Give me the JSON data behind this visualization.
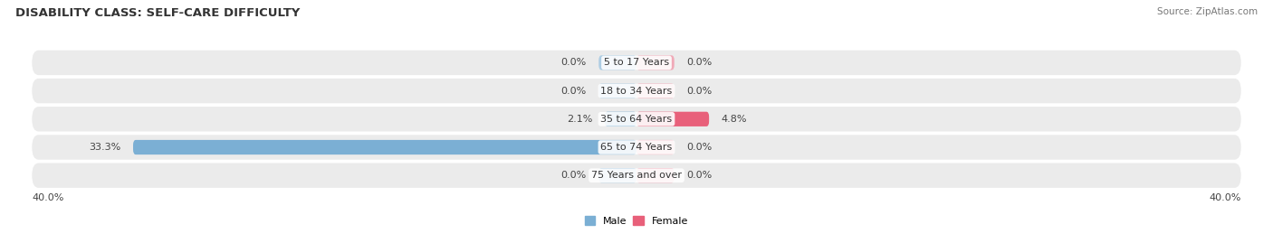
{
  "title": "DISABILITY CLASS: SELF-CARE DIFFICULTY",
  "source": "Source: ZipAtlas.com",
  "categories": [
    "5 to 17 Years",
    "18 to 34 Years",
    "35 to 64 Years",
    "65 to 74 Years",
    "75 Years and over"
  ],
  "male_values": [
    0.0,
    0.0,
    2.1,
    33.3,
    0.0
  ],
  "female_values": [
    0.0,
    0.0,
    4.8,
    0.0,
    0.0
  ],
  "max_value": 40.0,
  "male_color": "#7bafd4",
  "female_color": "#e8607a",
  "male_color_light": "#aecde3",
  "female_color_light": "#f0aab8",
  "row_bg_color": "#ebebeb",
  "row_bg_color2": "#f5f5f5",
  "background_color": "#ffffff",
  "title_fontsize": 9.5,
  "label_fontsize": 8,
  "value_fontsize": 8,
  "axis_label_fontsize": 8,
  "bar_height": 0.52,
  "stub_size": 2.5
}
